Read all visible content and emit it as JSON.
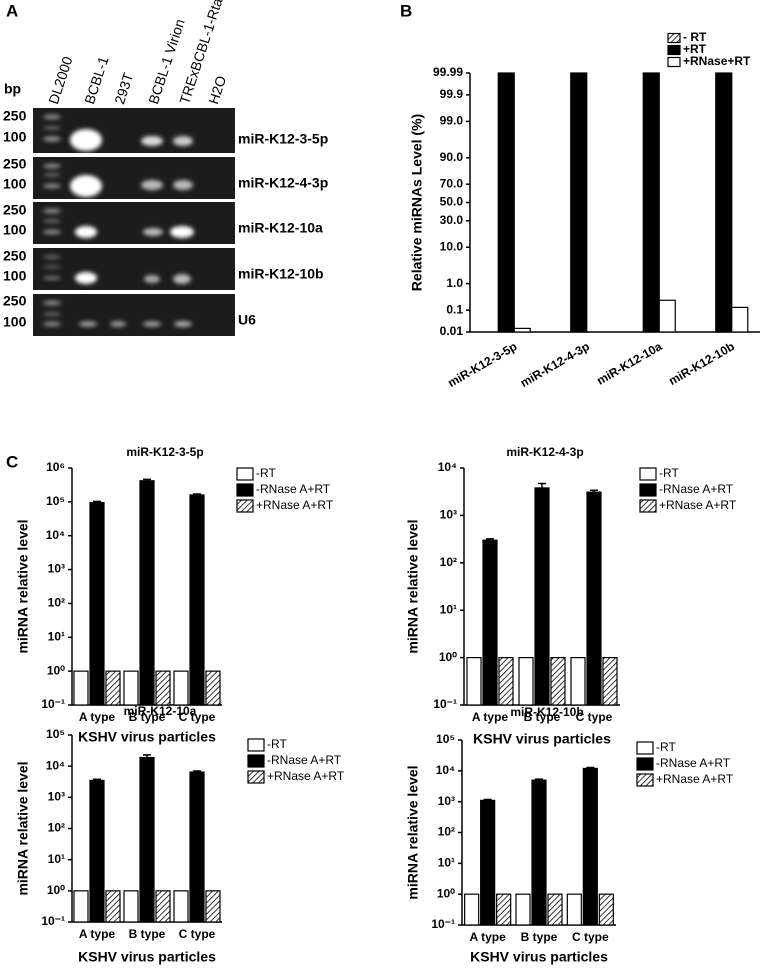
{
  "panel_labels": [
    "A",
    "B",
    "C"
  ],
  "gel": {
    "bp_label": "bp",
    "lanes": [
      "DL2000",
      "BCBL-1",
      "293T",
      "BCBL-1 Virion",
      "TRExBCBL-1-Rta",
      "H2O"
    ],
    "rows": [
      {
        "label": "miR-K12-3-5p",
        "markers": [
          "250",
          "100"
        ]
      },
      {
        "label": "miR-K12-4-3p",
        "markers": [
          "250",
          "100"
        ]
      },
      {
        "label": "miR-K12-10a",
        "markers": [
          "250",
          "100"
        ]
      },
      {
        "label": "miR-K12-10b",
        "markers": [
          "250",
          "100"
        ]
      },
      {
        "label": "U6",
        "markers": [
          "250",
          "100"
        ]
      }
    ]
  },
  "chart_data": [
    {
      "type": "bar",
      "yscale": "probability",
      "ylabel": "Relative miRNAs Level (%)",
      "categories": [
        "miR-K12-3-5p",
        "miR-K12-4-3p",
        "miR-K12-10a",
        "miR-K12-10b"
      ],
      "series": [
        {
          "name": "- RT",
          "color": "#000000",
          "hatch": true,
          "values": [
            null,
            null,
            null,
            null
          ]
        },
        {
          "name": "+RT",
          "color": "#000000",
          "values": [
            99.99,
            99.99,
            99.99,
            99.99
          ]
        },
        {
          "name": "+RNase+RT",
          "color": "#ffffff",
          "values": [
            0.015,
            null,
            0.25,
            0.13
          ]
        }
      ],
      "ylim": [
        0.01,
        99.99
      ],
      "yticks": [
        99.99,
        99.9,
        {
          "value": 99,
          "label": "99.0"
        },
        {
          "value": 90,
          "label": "90.0"
        },
        {
          "value": 70,
          "label": "70.0"
        },
        {
          "value": 50,
          "label": "50.0"
        },
        {
          "value": 30,
          "label": "30.0"
        },
        {
          "value": 10,
          "label": "10.0"
        },
        {
          "value": 1,
          "label": "1.0"
        },
        0.1,
        0.01
      ],
      "legend": "upper right"
    },
    {
      "type": "bar",
      "yscale": "log",
      "title": "miR-K12-3-5p",
      "ylabel": "miRNA relative level",
      "xlabel": "KSHV virus particles",
      "categories": [
        "A type",
        "B type",
        "C type"
      ],
      "series": [
        {
          "name": "-RT",
          "color": "#ffffff",
          "values": [
            1,
            1,
            1
          ]
        },
        {
          "name": "-RNase A+RT",
          "color": "#000000",
          "values": [
            95000,
            420000,
            160000
          ],
          "errors": [
            8000,
            40000,
            10000
          ]
        },
        {
          "name": "+RNase A+RT",
          "color": "#000000",
          "hatch": true,
          "values": [
            1,
            1,
            1
          ]
        }
      ],
      "ylim": [
        0.1,
        1000000
      ],
      "yticks": [
        {
          "value": 0.1,
          "label": "10⁻¹"
        },
        {
          "value": 1,
          "label": "10⁰"
        },
        {
          "value": 10,
          "label": "10¹"
        },
        {
          "value": 100,
          "label": "10²"
        },
        {
          "value": 1000,
          "label": "10³"
        },
        {
          "value": 10000,
          "label": "10⁴"
        },
        {
          "value": 100000,
          "label": "10⁵"
        },
        {
          "value": 1000000,
          "label": "10⁶"
        }
      ],
      "legend": "upper right"
    },
    {
      "type": "bar",
      "yscale": "log",
      "title": "miR-K12-4-3p",
      "ylabel": "miRNA relative level",
      "xlabel": "KSHV virus particles",
      "categories": [
        "A type",
        "B type",
        "C type"
      ],
      "series": [
        {
          "name": "-RT",
          "color": "#ffffff",
          "values": [
            1,
            1,
            1
          ]
        },
        {
          "name": "-RNase A+RT",
          "color": "#000000",
          "values": [
            300,
            3800,
            3100
          ],
          "errors": [
            20,
            900,
            300
          ]
        },
        {
          "name": "+RNase A+RT",
          "color": "#000000",
          "hatch": true,
          "values": [
            1,
            1,
            1
          ]
        }
      ],
      "ylim": [
        0.1,
        10000
      ],
      "yticks": [
        {
          "value": 0.1,
          "label": "10⁻¹"
        },
        {
          "value": 1,
          "label": "10⁰"
        },
        {
          "value": 10,
          "label": "10¹"
        },
        {
          "value": 100,
          "label": "10²"
        },
        {
          "value": 1000,
          "label": "10³"
        },
        {
          "value": 10000,
          "label": "10⁴"
        }
      ],
      "legend": "upper right"
    },
    {
      "type": "bar",
      "yscale": "log",
      "title": "miR-K12-10a",
      "ylabel": "miRNA relative level",
      "xlabel": "KSHV virus particles",
      "categories": [
        "A type",
        "B type",
        "C type"
      ],
      "series": [
        {
          "name": "-RT",
          "color": "#ffffff",
          "values": [
            1,
            1,
            1
          ]
        },
        {
          "name": "-RNase A+RT",
          "color": "#000000",
          "values": [
            3500,
            19000,
            6500
          ],
          "errors": [
            300,
            4000,
            500
          ]
        },
        {
          "name": "+RNase A+RT",
          "color": "#000000",
          "hatch": true,
          "values": [
            1,
            1,
            1
          ]
        }
      ],
      "ylim": [
        0.1,
        100000
      ],
      "yticks": [
        {
          "value": 0.1,
          "label": "10⁻¹"
        },
        {
          "value": 1,
          "label": "10⁰"
        },
        {
          "value": 10,
          "label": "10¹"
        },
        {
          "value": 100,
          "label": "10²"
        },
        {
          "value": 1000,
          "label": "10³"
        },
        {
          "value": 10000,
          "label": "10⁴"
        },
        {
          "value": 100000,
          "label": "10⁵"
        }
      ],
      "legend": "upper right"
    },
    {
      "type": "bar",
      "yscale": "log",
      "title": "miR-K12-10b",
      "ylabel": "miRNA relative level",
      "xlabel": "KSHV virus particles",
      "categories": [
        "A type",
        "B type",
        "C type"
      ],
      "series": [
        {
          "name": "-RT",
          "color": "#ffffff",
          "values": [
            1,
            1,
            1
          ]
        },
        {
          "name": "-RNase A+RT",
          "color": "#000000",
          "values": [
            1100,
            5000,
            12000
          ],
          "errors": [
            80,
            400,
            800
          ]
        },
        {
          "name": "+RNase A+RT",
          "color": "#000000",
          "hatch": true,
          "values": [
            1,
            1,
            1
          ]
        }
      ],
      "ylim": [
        0.1,
        100000
      ],
      "yticks": [
        {
          "value": 0.1,
          "label": "10⁻¹"
        },
        {
          "value": 1,
          "label": "10⁰"
        },
        {
          "value": 10,
          "label": "10¹"
        },
        {
          "value": 100,
          "label": "10²"
        },
        {
          "value": 1000,
          "label": "10³"
        },
        {
          "value": 10000,
          "label": "10⁴"
        },
        {
          "value": 100000,
          "label": "10⁵"
        }
      ],
      "legend": "upper right"
    }
  ]
}
